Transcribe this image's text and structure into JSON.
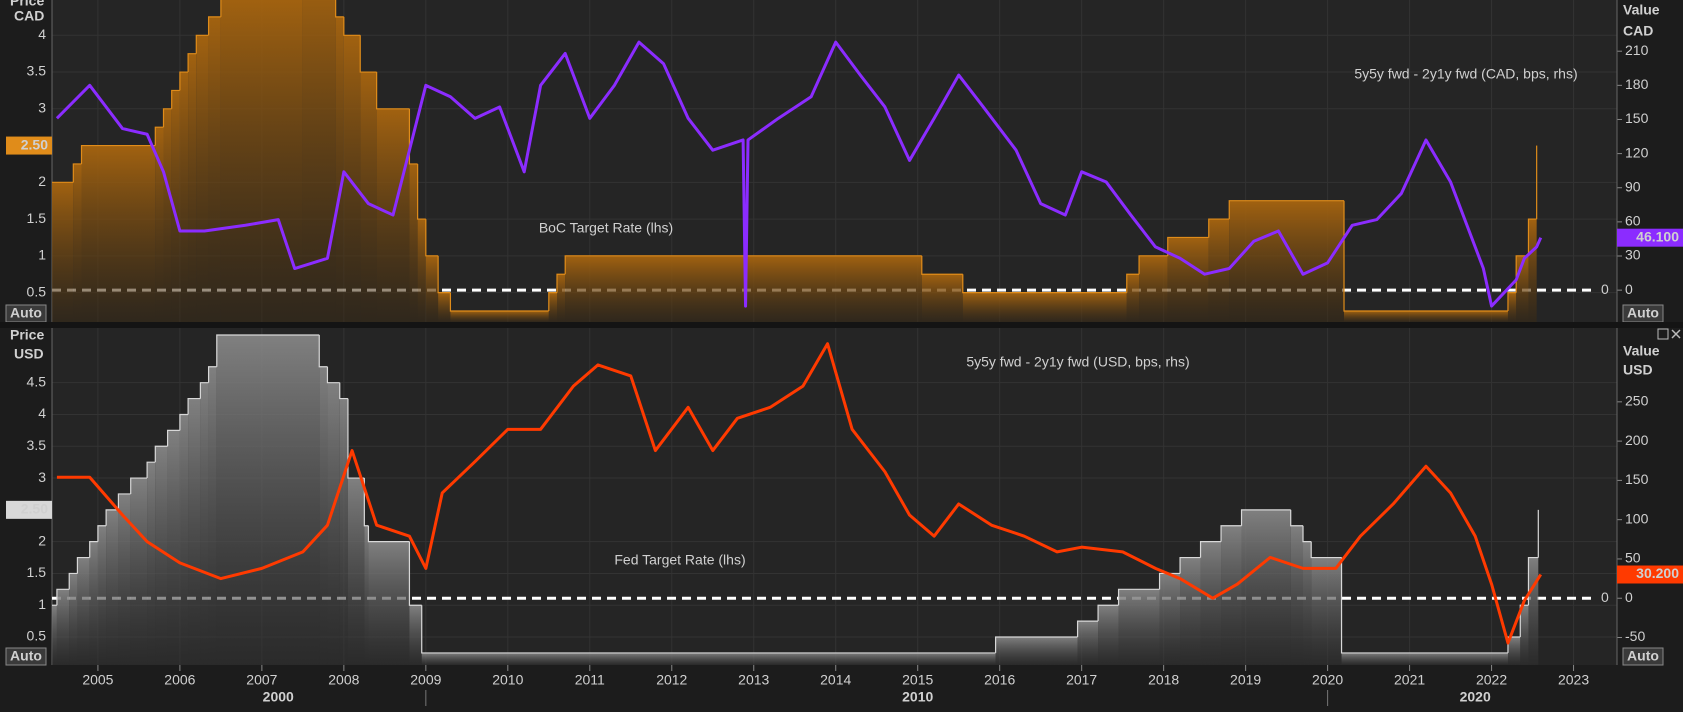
{
  "chart_data": [
    {
      "type": "line",
      "xlim": [
        2004.44,
        2023.53
      ],
      "ylim": [
        0.1,
        4.48
      ],
      "yticks": [
        0.5,
        1,
        1.5,
        2,
        3,
        3.5,
        4
      ],
      "y2lim": [
        -28,
        255
      ],
      "y2ticks": [
        0,
        30,
        60,
        90,
        120,
        150,
        180,
        210
      ],
      "y_label": "Price",
      "y_unit": "CAD",
      "y2_label": "Value",
      "y2_unit": "CAD",
      "button": "Auto",
      "zero_line": 0,
      "grid": true,
      "series": [
        {
          "name": "BoC Target Rate (lhs)",
          "color": "#e08c1a",
          "axis": "y",
          "step": true,
          "last_label": "2.50",
          "x": [
            2004.44,
            2004.7,
            2004.8,
            2005.7,
            2005.8,
            2005.9,
            2006.0,
            2006.1,
            2006.2,
            2006.35,
            2006.5,
            2007.5,
            2007.9,
            2008.0,
            2008.2,
            2008.4,
            2008.8,
            2008.9,
            2009.0,
            2009.15,
            2009.3,
            2010.5,
            2010.6,
            2010.7,
            2015.05,
            2015.55,
            2017.55,
            2017.7,
            2018.05,
            2018.55,
            2018.8,
            2020.2,
            2022.2,
            2022.3,
            2022.45,
            2022.55
          ],
          "values": [
            2,
            2.25,
            2.5,
            2.75,
            3,
            3.25,
            3.5,
            3.75,
            4,
            4.25,
            4.5,
            4.75,
            4.25,
            4,
            3.5,
            3,
            2.25,
            1.5,
            1,
            0.5,
            0.25,
            0.5,
            0.75,
            1,
            0.75,
            0.5,
            0.75,
            1,
            1.25,
            1.5,
            1.75,
            0.25,
            0.5,
            1,
            1.5,
            2.5
          ]
        },
        {
          "name": "5y5y fwd - 2y1y fwd (CAD, bps, rhs)",
          "color": "#8b2cff",
          "axis": "y2",
          "last_label": "46.100",
          "x": [
            2004.5,
            2004.9,
            2005.3,
            2005.6,
            2005.8,
            2006.0,
            2006.3,
            2006.8,
            2007.2,
            2007.4,
            2007.8,
            2008.0,
            2008.3,
            2008.6,
            2008.8,
            2009.0,
            2009.3,
            2009.6,
            2009.9,
            2010.2,
            2010.4,
            2010.7,
            2011.0,
            2011.3,
            2011.6,
            2011.9,
            2012.2,
            2012.5,
            2012.87,
            2012.9,
            2012.93,
            2013.3,
            2013.7,
            2014.0,
            2014.3,
            2014.6,
            2014.9,
            2015.2,
            2015.5,
            2015.8,
            2016.2,
            2016.5,
            2016.8,
            2017.0,
            2017.3,
            2017.6,
            2017.9,
            2018.2,
            2018.5,
            2018.8,
            2019.1,
            2019.4,
            2019.7,
            2020.0,
            2020.3,
            2020.6,
            2020.9,
            2021.2,
            2021.5,
            2021.7,
            2021.9,
            2022.0,
            2022.3,
            2022.4,
            2022.55,
            2022.6
          ],
          "values": [
            151,
            180,
            142,
            137,
            104,
            52,
            52,
            57,
            62,
            19,
            28,
            104,
            76,
            66,
            123,
            180,
            170,
            151,
            161,
            104,
            180,
            208,
            151,
            180,
            218,
            199,
            151,
            123,
            132,
            -14,
            132,
            151,
            170,
            218,
            189,
            161,
            114,
            151,
            189,
            161,
            123,
            76,
            66,
            104,
            95,
            66,
            38,
            28,
            14,
            19,
            43,
            52,
            14,
            24,
            57,
            62,
            85,
            132,
            95,
            57,
            19,
            -14,
            9,
            28,
            38,
            46.1
          ]
        }
      ]
    },
    {
      "type": "line",
      "xlim": [
        2004.44,
        2023.53
      ],
      "ylim": [
        0.06,
        5.36
      ],
      "yticks": [
        0.5,
        1,
        1.5,
        2,
        3,
        3.5,
        4,
        4.5
      ],
      "y2lim": [
        -85,
        344
      ],
      "y2ticks": [
        -50,
        0,
        50,
        100,
        150,
        200,
        250
      ],
      "xticks": [
        2005,
        2006,
        2007,
        2008,
        2009,
        2010,
        2011,
        2012,
        2013,
        2014,
        2015,
        2016,
        2017,
        2018,
        2019,
        2020,
        2021,
        2022,
        2023
      ],
      "decade_labels": [
        "2000",
        "2010",
        "2020"
      ],
      "y_label": "Price",
      "y_unit": "USD",
      "y2_label": "Value",
      "y2_unit": "USD",
      "button": "Auto",
      "zero_line": 0,
      "grid": true,
      "series": [
        {
          "name": "Fed Target Rate (lhs)",
          "color": "#d8d8d8",
          "axis": "y",
          "step": true,
          "last_label": "2.50",
          "x": [
            2004.44,
            2004.5,
            2004.65,
            2004.75,
            2004.9,
            2005.0,
            2005.1,
            2005.25,
            2005.4,
            2005.6,
            2005.7,
            2005.85,
            2006.0,
            2006.1,
            2006.25,
            2006.35,
            2006.45,
            2007.7,
            2007.8,
            2007.95,
            2008.05,
            2008.25,
            2008.3,
            2008.8,
            2008.95,
            2015.95,
            2016.95,
            2017.2,
            2017.45,
            2017.95,
            2018.2,
            2018.45,
            2018.7,
            2018.95,
            2019.55,
            2019.7,
            2019.8,
            2020.17,
            2022.2,
            2022.35,
            2022.45,
            2022.57
          ],
          "values": [
            1,
            1.25,
            1.5,
            1.75,
            2,
            2.25,
            2.5,
            2.75,
            3,
            3.25,
            3.5,
            3.75,
            4,
            4.25,
            4.5,
            4.75,
            5.25,
            4.75,
            4.5,
            4.25,
            3,
            2.25,
            2,
            1,
            0.25,
            0.5,
            0.75,
            1,
            1.25,
            1.5,
            1.75,
            2,
            2.25,
            2.5,
            2.25,
            2,
            1.75,
            0.25,
            0.5,
            1,
            1.75,
            2.5
          ]
        },
        {
          "name": "5y5y fwd - 2y1y fwd (USD, bps, rhs)",
          "color": "#ff3a00",
          "axis": "y2",
          "last_label": "30.200",
          "x": [
            2004.5,
            2004.9,
            2005.3,
            2005.6,
            2006.0,
            2006.5,
            2007.0,
            2007.5,
            2007.8,
            2008.1,
            2008.4,
            2008.8,
            2009.0,
            2009.2,
            2009.6,
            2010.0,
            2010.4,
            2010.8,
            2011.1,
            2011.5,
            2011.8,
            2012.2,
            2012.5,
            2012.8,
            2013.2,
            2013.6,
            2013.9,
            2014.2,
            2014.6,
            2014.9,
            2015.2,
            2015.5,
            2015.9,
            2016.3,
            2016.7,
            2017.0,
            2017.5,
            2017.9,
            2018.2,
            2018.6,
            2018.9,
            2019.3,
            2019.7,
            2020.1,
            2020.4,
            2020.8,
            2021.2,
            2021.5,
            2021.8,
            2022.0,
            2022.2,
            2022.4,
            2022.6
          ],
          "values": [
            154,
            154,
            106,
            72,
            45,
            25,
            38,
            59,
            93,
            188,
            93,
            79,
            38,
            134,
            174,
            215,
            215,
            270,
            297,
            283,
            188,
            243,
            188,
            229,
            243,
            270,
            324,
            215,
            161,
            106,
            79,
            120,
            93,
            79,
            59,
            65,
            59,
            38,
            25,
            0,
            18,
            52,
            38,
            38,
            79,
            120,
            168,
            134,
            79,
            18,
            -57,
            -3,
            30.2
          ]
        }
      ]
    }
  ]
}
